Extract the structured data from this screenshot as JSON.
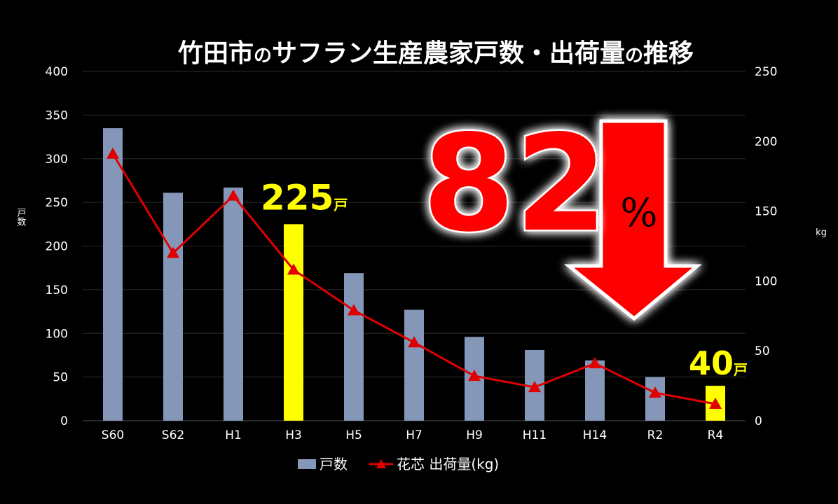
{
  "chart_data": {
    "type": "bar",
    "title": {
      "main1": "竹田市",
      "no1": "の",
      "main2": "サフラン生産農家戸数・出荷量",
      "no2": "の",
      "main3": "推移"
    },
    "categories": [
      "S60",
      "S62",
      "H1",
      "H3",
      "H5",
      "H7",
      "H9",
      "H11",
      "H14",
      "R2",
      "R4"
    ],
    "series": [
      {
        "name": "戸数",
        "axis": "left",
        "values": [
          335,
          261,
          267,
          225,
          169,
          127,
          96,
          81,
          69,
          50,
          40
        ],
        "color": "#8497b8",
        "highlight_color": "#ffff00",
        "highlight_indices": [
          3,
          10
        ]
      },
      {
        "name": "花芯 出荷量(kg)",
        "axis": "right",
        "type": "line",
        "marker": "triangle",
        "values": [
          191,
          120,
          161,
          108,
          79,
          56,
          32,
          24,
          41,
          20,
          12
        ],
        "color": "#e00000"
      }
    ],
    "y_left": {
      "label": "戸数",
      "ylim": [
        0,
        400
      ],
      "ticks": [
        "0",
        "50",
        "100",
        "150",
        "200",
        "250",
        "300",
        "350",
        "400"
      ]
    },
    "y_right": {
      "label": "kg",
      "ylim": [
        0,
        250
      ],
      "ticks": [
        "0",
        "50",
        "100",
        "150",
        "200",
        "250"
      ]
    },
    "grid": true,
    "legend": {
      "placement": "bottom",
      "items": [
        "戸数",
        "花芯 出荷量(kg)"
      ]
    },
    "annotations": [
      {
        "target": "H3",
        "value": "225",
        "unit": "戸",
        "color": "#ffff00"
      },
      {
        "target": "R4",
        "value": "40",
        "unit": "戸",
        "color": "#ffff00"
      }
    ],
    "callout": {
      "number": "82",
      "unit": "%",
      "arrow": "down",
      "color": "#ff0000"
    }
  }
}
